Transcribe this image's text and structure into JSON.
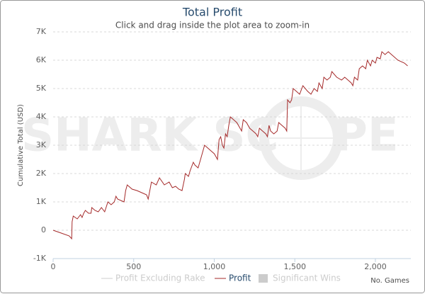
{
  "chart_data": {
    "type": "line",
    "title": "Total Profit",
    "subtitle": "Click and drag inside the plot area to zoom-in",
    "y_axis_label": "Cumulative Total (USD)",
    "x_axis_label": "No. Games",
    "watermark": [
      "SHARK SC",
      "PE"
    ],
    "xlim": [
      0,
      2220
    ],
    "xticks": [
      0,
      500,
      {
        "value": 1000,
        "label": "1,000"
      },
      {
        "value": 1500,
        "label": "1,500"
      },
      {
        "value": 2000,
        "label": "2,000"
      }
    ],
    "ylim": [
      -1000,
      7000
    ],
    "yticks": [
      {
        "value": -1000,
        "label": "-1K"
      },
      0,
      {
        "value": 1000,
        "label": "1K"
      },
      {
        "value": 2000,
        "label": "2K"
      },
      {
        "value": 3000,
        "label": "3K"
      },
      {
        "value": 4000,
        "label": "4K"
      },
      {
        "value": 5000,
        "label": "5K"
      },
      {
        "value": 6000,
        "label": "6K"
      },
      {
        "value": 7000,
        "label": "7K"
      }
    ],
    "grid": true,
    "hidden_legend_items": [
      "Profit Excluding Rake",
      "Significant Wins"
    ],
    "series": [
      {
        "name": "Profit",
        "color": "#a52a2a",
        "x": [
          0,
          50,
          100,
          115,
          118,
          125,
          150,
          170,
          180,
          190,
          200,
          220,
          235,
          240,
          260,
          280,
          300,
          320,
          340,
          360,
          380,
          390,
          400,
          440,
          450,
          460,
          490,
          520,
          560,
          580,
          590,
          600,
          610,
          640,
          660,
          690,
          720,
          740,
          760,
          780,
          800,
          815,
          820,
          840,
          850,
          870,
          880,
          900,
          920,
          940,
          960,
          980,
          1000,
          1010,
          1020,
          1030,
          1040,
          1050,
          1060,
          1070,
          1080,
          1090,
          1100,
          1120,
          1140,
          1160,
          1170,
          1180,
          1200,
          1220,
          1240,
          1260,
          1270,
          1280,
          1300,
          1320,
          1330,
          1340,
          1350,
          1370,
          1390,
          1400,
          1420,
          1440,
          1450,
          1455,
          1470,
          1480,
          1490,
          1510,
          1530,
          1550,
          1580,
          1600,
          1620,
          1640,
          1650,
          1660,
          1670,
          1680,
          1700,
          1720,
          1730,
          1760,
          1790,
          1810,
          1830,
          1850,
          1860,
          1870,
          1890,
          1900,
          1920,
          1940,
          1950,
          1970,
          1980,
          2000,
          2010,
          2030,
          2040,
          2060,
          2080,
          2100,
          2140,
          2180,
          2200
        ],
        "values": [
          0,
          -100,
          -200,
          -300,
          300,
          500,
          400,
          550,
          450,
          600,
          700,
          600,
          600,
          800,
          700,
          650,
          800,
          650,
          1000,
          900,
          1000,
          1200,
          1100,
          1000,
          1400,
          1600,
          1450,
          1400,
          1300,
          1250,
          1100,
          1400,
          1700,
          1600,
          1850,
          1600,
          1700,
          1500,
          1550,
          1450,
          1400,
          1800,
          2000,
          1900,
          2100,
          2400,
          2300,
          2200,
          2600,
          3000,
          2900,
          2800,
          2700,
          2600,
          2500,
          3200,
          3300,
          3000,
          2900,
          3400,
          3300,
          3700,
          4000,
          3900,
          3800,
          3600,
          3500,
          3900,
          3800,
          3600,
          3500,
          3400,
          3300,
          3600,
          3500,
          3400,
          3300,
          3700,
          3500,
          3400,
          3500,
          3800,
          3700,
          3600,
          3500,
          4600,
          4500,
          4600,
          5000,
          4900,
          4800,
          5100,
          4900,
          4800,
          5000,
          4900,
          5200,
          5100,
          5000,
          5400,
          5300,
          5400,
          5600,
          5400,
          5300,
          5400,
          5300,
          5200,
          5100,
          5400,
          5300,
          5700,
          5800,
          5700,
          6000,
          5800,
          6000,
          5900,
          6100,
          6050,
          6300,
          6200,
          6300,
          6200,
          6000,
          5900,
          5800
        ]
      }
    ]
  }
}
